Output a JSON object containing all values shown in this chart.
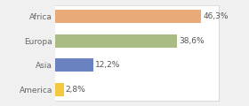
{
  "categories": [
    "America",
    "Asia",
    "Europa",
    "Africa"
  ],
  "values": [
    2.8,
    12.2,
    38.6,
    46.3
  ],
  "labels": [
    "2,8%",
    "12,2%",
    "38,6%",
    "46,3%"
  ],
  "bar_colors": [
    "#f5c842",
    "#6b82c0",
    "#a8bc84",
    "#e8aa78"
  ],
  "xlim": [
    0,
    52
  ],
  "background_color": "#ffffff",
  "outer_background": "#f0f0f0",
  "label_fontsize": 6.5,
  "tick_fontsize": 6.5,
  "bar_height": 0.55
}
